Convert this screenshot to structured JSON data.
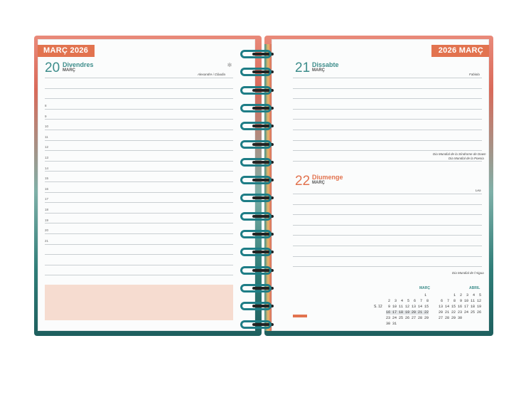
{
  "left_page": {
    "tab_label": "MARÇ 2026",
    "day_number": "20",
    "day_name": "Divendres",
    "day_month": "MARÇ",
    "saint": "Alexandre i Clàudia",
    "hours": [
      "8",
      "9",
      "10",
      "11",
      "12",
      "13",
      "14",
      "15",
      "16",
      "17",
      "18",
      "19",
      "20",
      "21"
    ]
  },
  "right_page": {
    "tab_label": "2026 MARÇ",
    "day1": {
      "number": "21",
      "name": "Dissabte",
      "month": "MARÇ",
      "saint": "Fabiola",
      "events": [
        "Dia Mundial de la Síndrome de Down",
        "Dia Mundial de la Poesia"
      ]
    },
    "day2": {
      "number": "22",
      "name": "Diumenge",
      "month": "MARÇ",
      "saint": "Lea",
      "events": [
        "Dia Mundial de l'Aigua"
      ]
    },
    "calendars": {
      "march": {
        "title": "MARÇ",
        "week_numbers": "",
        "rows": [
          "                  1",
          " 2  3  4  5  6  7  8",
          " 9 10 11 12 13 14 15",
          "16 17 18 19 20 21 22",
          "23 24 25 26 27 28 29",
          "30 31"
        ],
        "week_label": "S. 12"
      },
      "april": {
        "title": "ABRIL",
        "rows": [
          "       1  2  3  4  5",
          " 6  7  8  9 10 11 12",
          "13 14 15 16 17 18 19",
          "20 21 22 23 24 25 26",
          "27 28 29 30"
        ]
      }
    }
  },
  "colors": {
    "accent": "#e2734f",
    "teal": "#3d8d8b",
    "ring": "#1e7d86"
  }
}
